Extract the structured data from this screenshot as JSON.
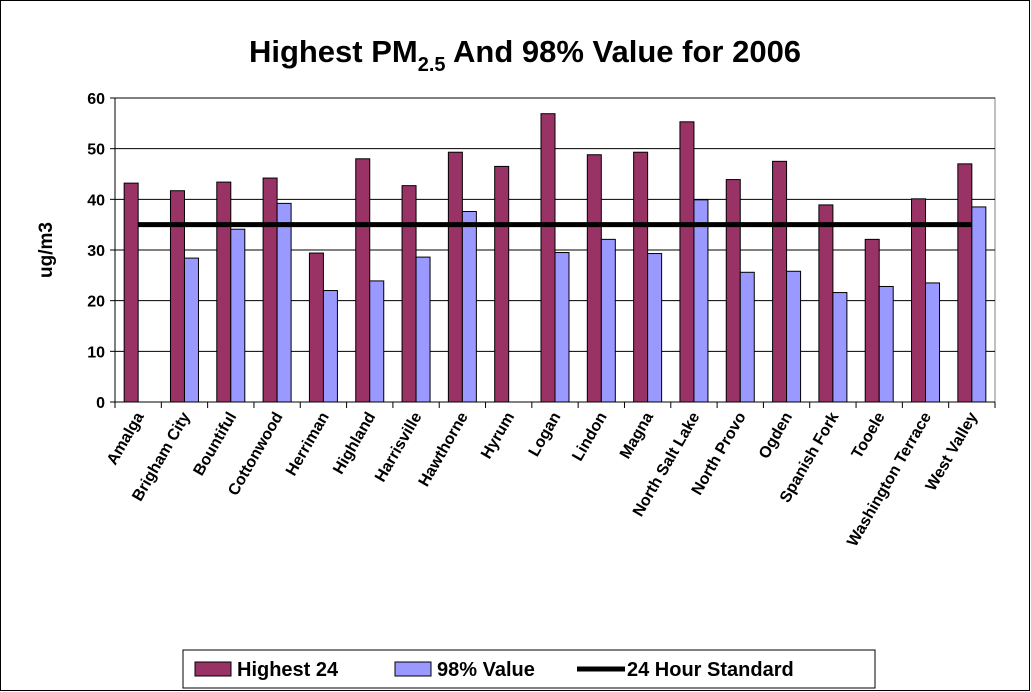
{
  "chart_data": {
    "type": "bar",
    "title": {
      "main": "Highest PM",
      "subscript": "2.5",
      "rest": " And 98% Value for 2006"
    },
    "y_label": "ug/m3",
    "categories": [
      "Amalga",
      "Brigham City",
      "Bountiful",
      "Cottonwood",
      "Herriman",
      "Highland",
      "Harrisville",
      "Hawthorne",
      "Hyrum",
      "Logan",
      "Lindon",
      "Magna",
      "North Salt Lake",
      "North Provo",
      "Ogden",
      "Spanish Fork",
      "Tooele",
      "Washington Terrace",
      "West Valley"
    ],
    "series": [
      {
        "name": "Highest 24",
        "type": "bar",
        "color": "#993366",
        "values": [
          43.2,
          41.7,
          43.4,
          44.2,
          29.4,
          48.0,
          42.7,
          49.3,
          46.5,
          56.9,
          48.8,
          49.3,
          55.3,
          43.9,
          47.5,
          38.9,
          32.1,
          40.1,
          47.0
        ]
      },
      {
        "name": "98% Value",
        "type": "bar",
        "color": "#9999ff",
        "values": [
          null,
          28.4,
          34.1,
          39.2,
          22.0,
          23.9,
          28.6,
          37.6,
          null,
          29.5,
          32.1,
          29.3,
          39.9,
          25.6,
          25.8,
          21.6,
          22.8,
          23.5,
          38.5
        ]
      },
      {
        "name": "24 Hour Standard",
        "type": "line",
        "color": "#000000",
        "values": [
          35,
          35,
          35,
          35,
          35,
          35,
          35,
          35,
          35,
          35,
          35,
          35,
          35,
          35,
          35,
          35,
          35,
          35,
          35
        ]
      }
    ],
    "ylim": [
      0,
      60
    ],
    "yticks": [
      0,
      10,
      20,
      30,
      40,
      50,
      60
    ],
    "grid": true,
    "legend": "bottom"
  }
}
